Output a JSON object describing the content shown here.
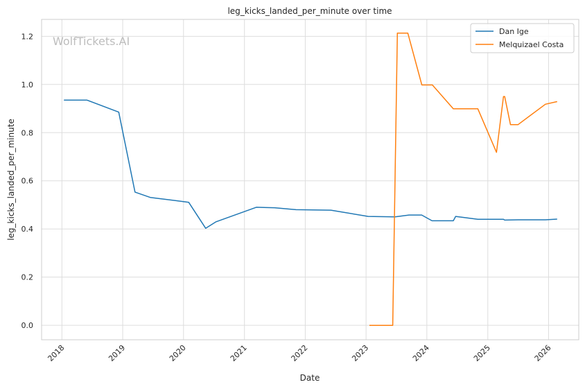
{
  "chart_data": {
    "type": "line",
    "title": "leg_kicks_landed_per_minute over time",
    "xlabel": "Date",
    "ylabel": "leg_kicks_landed_per_minute",
    "watermark": "WolfTickets.AI",
    "xlim": [
      "2017-09-01",
      "2026-07-01"
    ],
    "ylim": [
      -0.06,
      1.27
    ],
    "x_ticks": [
      "2018",
      "2019",
      "2020",
      "2021",
      "2022",
      "2023",
      "2024",
      "2025",
      "2026"
    ],
    "y_ticks": [
      "0.0",
      "0.2",
      "0.4",
      "0.6",
      "0.8",
      "1.0",
      "1.2"
    ],
    "grid": true,
    "legend_position": "top-right",
    "series": [
      {
        "name": "Dan Ige",
        "color": "#1f77b4",
        "x": [
          "2018-01-13",
          "2018-06-01",
          "2018-12-08",
          "2019-03-16",
          "2019-06-15",
          "2020-02-01",
          "2020-05-13",
          "2020-07-15",
          "2021-03-13",
          "2021-07-01",
          "2021-11-06",
          "2022-06-04",
          "2023-01-14",
          "2023-06-24",
          "2023-09-16",
          "2023-12-01",
          "2024-02-01",
          "2024-06-08",
          "2024-06-22",
          "2024-11-02",
          "2025-03-01",
          "2025-04-05",
          "2025-04-12",
          "2025-07-01",
          "2025-12-13",
          "2026-02-21"
        ],
        "y": [
          0.935,
          0.935,
          0.885,
          0.553,
          0.531,
          0.511,
          0.403,
          0.43,
          0.49,
          0.488,
          0.48,
          0.478,
          0.452,
          0.45,
          0.458,
          0.458,
          0.434,
          0.434,
          0.452,
          0.44,
          0.44,
          0.44,
          0.437,
          0.438,
          0.438,
          0.441
        ]
      },
      {
        "name": "Melquizael Costa",
        "color": "#ff7f0e",
        "x": [
          "2023-01-21",
          "2023-06-10",
          "2023-07-08",
          "2023-09-09",
          "2023-12-02",
          "2024-02-03",
          "2024-06-08",
          "2024-11-02",
          "2025-02-22",
          "2025-04-05",
          "2025-04-12",
          "2025-05-17",
          "2025-07-01",
          "2025-12-13",
          "2026-02-21"
        ],
        "y": [
          0.0,
          0.0,
          1.213,
          1.213,
          0.998,
          0.998,
          0.899,
          0.899,
          0.718,
          0.95,
          0.95,
          0.833,
          0.833,
          0.918,
          0.929
        ]
      }
    ]
  }
}
